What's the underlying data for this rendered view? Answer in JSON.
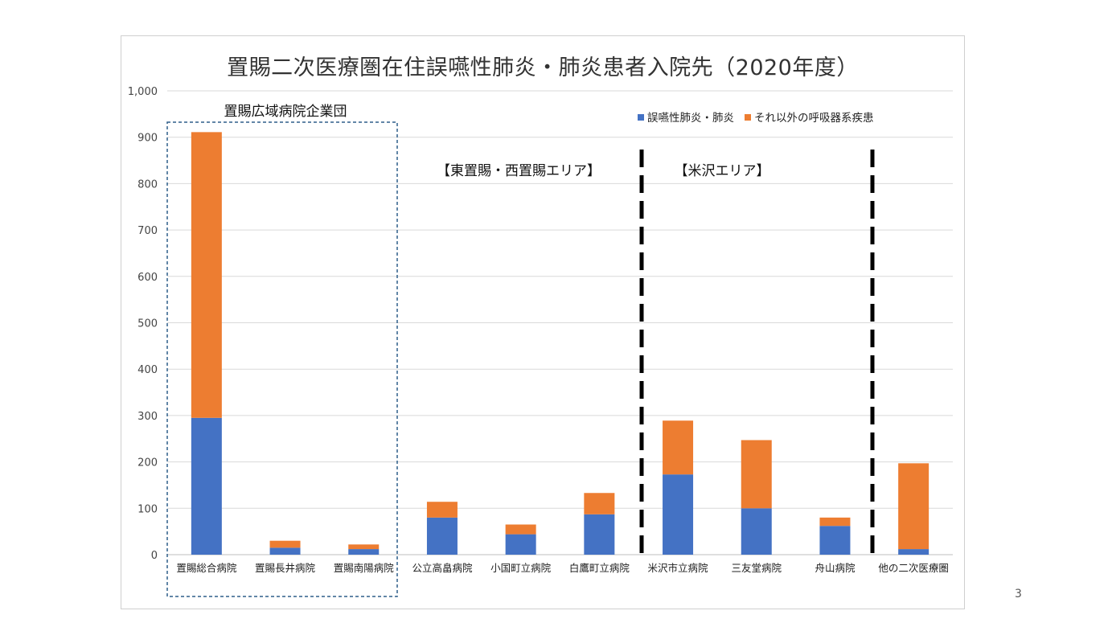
{
  "page_number": "3",
  "chart_data": {
    "type": "bar",
    "stacked": true,
    "title": "置賜二次医療圏在住誤嚥性肺炎・肺炎患者入院先（2020年度）",
    "categories": [
      "置賜総合病院",
      "置賜長井病院",
      "置賜南陽病院",
      "公立高畠病院",
      "小国町立病院",
      "白鷹町立病院",
      "米沢市立病院",
      "三友堂病院",
      "舟山病院",
      "他の二次医療圏"
    ],
    "series": [
      {
        "name": "誤嚥性肺炎・肺炎",
        "color": "#4472c4",
        "values": [
          295,
          15,
          12,
          80,
          44,
          87,
          173,
          100,
          62,
          12
        ]
      },
      {
        "name": "それ以外の呼吸器系疾患",
        "color": "#ed7d31",
        "values": [
          616,
          15,
          10,
          34,
          21,
          46,
          116,
          147,
          18,
          185
        ]
      }
    ],
    "ylim": [
      0,
      1000
    ],
    "y_ticks": [
      "0",
      "100",
      "200",
      "300",
      "400",
      "500",
      "600",
      "700",
      "800",
      "900",
      "1,000"
    ],
    "grid": true,
    "legend_position": "top-right",
    "annotations": {
      "group_box_label": "置賜広域病院企業団",
      "region_east_west": "【東置賜・西置賜エリア】",
      "region_yonezawa": "【米沢エリア】"
    }
  }
}
